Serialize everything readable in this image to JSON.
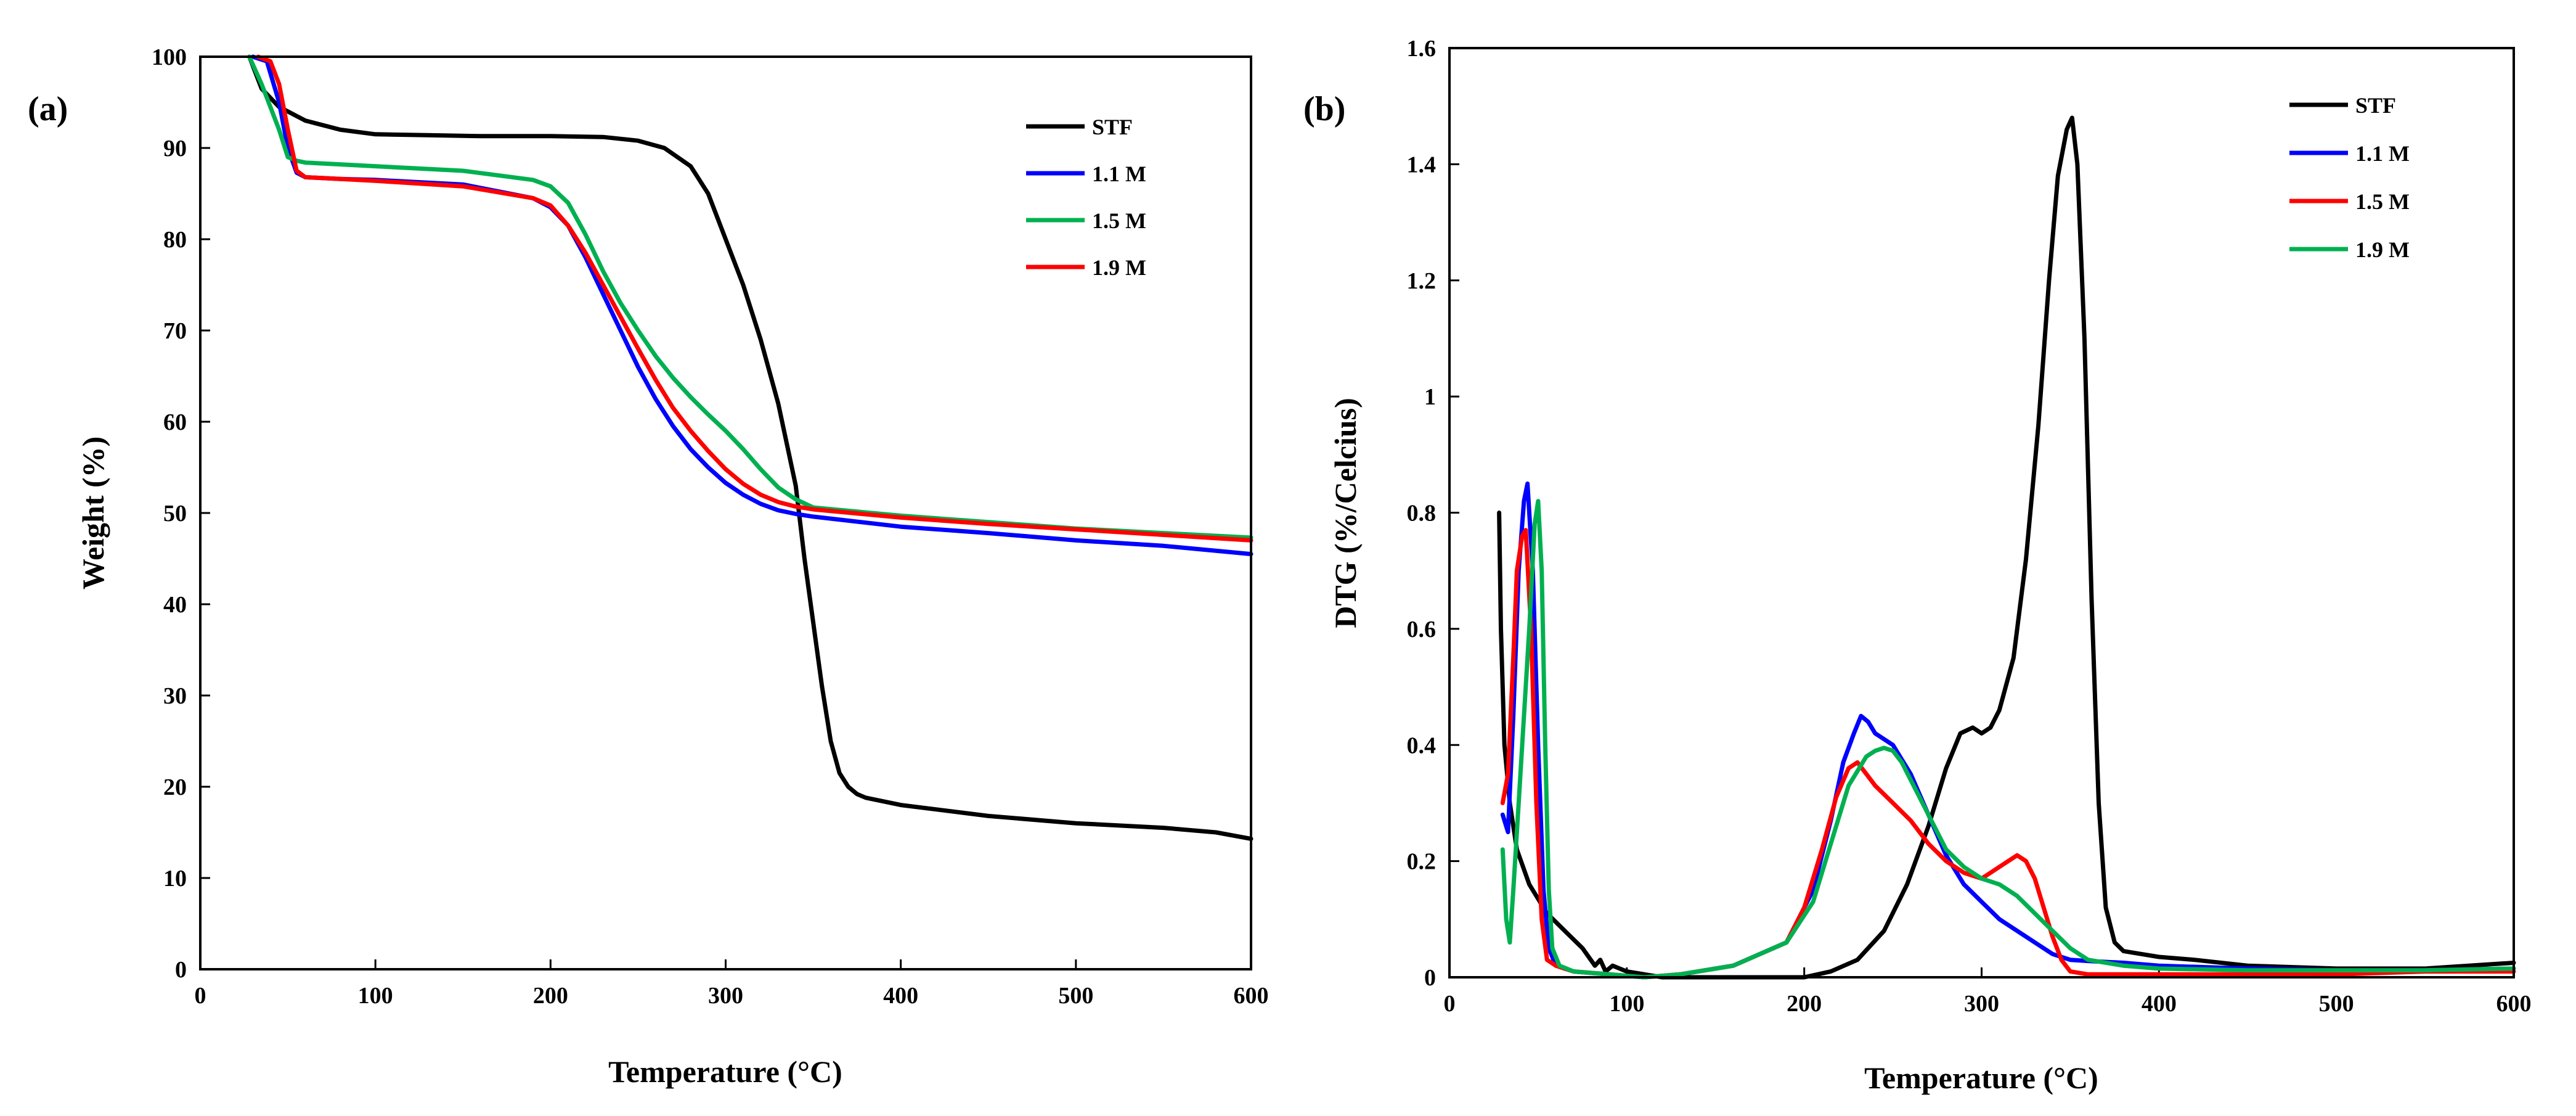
{
  "chart_data": [
    {
      "type": "line",
      "panel_label": "(a)",
      "title": "",
      "xlabel": "Temperature  (°C)",
      "ylabel": "Weight (%)",
      "xlim": [
        0,
        600
      ],
      "ylim": [
        0,
        100
      ],
      "xticks": [
        "0",
        "100",
        "200",
        "300",
        "400",
        "500",
        "600"
      ],
      "yticks": [
        "0",
        "10",
        "20",
        "30",
        "40",
        "50",
        "60",
        "70",
        "80",
        "90",
        "100"
      ],
      "legend_position": "top-right",
      "series": [
        {
          "name": "STF",
          "color": "#000000",
          "x": [
            28,
            35,
            45,
            60,
            80,
            100,
            130,
            160,
            200,
            230,
            250,
            265,
            280,
            290,
            300,
            310,
            320,
            330,
            340,
            345,
            350,
            355,
            360,
            365,
            370,
            375,
            380,
            400,
            450,
            500,
            550,
            580,
            600
          ],
          "y": [
            100,
            96.5,
            94.5,
            93,
            92,
            91.5,
            91.4,
            91.3,
            91.3,
            91.2,
            90.8,
            90,
            88,
            85,
            80,
            75,
            69,
            62,
            53,
            45,
            38,
            31,
            25,
            21.5,
            20,
            19.2,
            18.8,
            18,
            16.8,
            16,
            15.5,
            15,
            14.3
          ]
        },
        {
          "name": "1.1 M",
          "color": "#0000ff",
          "x": [
            30,
            38,
            45,
            50,
            55,
            60,
            80,
            100,
            150,
            190,
            200,
            210,
            220,
            230,
            240,
            250,
            260,
            270,
            280,
            290,
            300,
            310,
            320,
            330,
            340,
            350,
            400,
            450,
            500,
            550,
            600
          ],
          "y": [
            100,
            99.5,
            95,
            90,
            87.3,
            86.8,
            86.6,
            86.5,
            86,
            84.5,
            83.5,
            81.5,
            78,
            74,
            70,
            66,
            62.5,
            59.5,
            57,
            55,
            53.3,
            52,
            51,
            50.3,
            49.9,
            49.6,
            48.5,
            47.8,
            47,
            46.4,
            45.5
          ]
        },
        {
          "name": "1.5 M",
          "color": "#00b050",
          "x": [
            28,
            35,
            45,
            50,
            55,
            60,
            80,
            100,
            150,
            190,
            200,
            210,
            220,
            230,
            240,
            250,
            260,
            270,
            280,
            290,
            300,
            310,
            320,
            330,
            340,
            350,
            400,
            450,
            500,
            550,
            600
          ],
          "y": [
            100,
            97,
            92,
            89,
            88.6,
            88.4,
            88.2,
            88,
            87.5,
            86.5,
            85.8,
            84,
            80.5,
            76.5,
            73,
            70,
            67.2,
            64.8,
            62.7,
            60.8,
            59,
            57,
            54.8,
            52.8,
            51.5,
            50.6,
            49.7,
            49,
            48.3,
            47.8,
            47.3
          ]
        },
        {
          "name": "1.9 M",
          "color": "#ff0000",
          "x": [
            33,
            40,
            45,
            50,
            55,
            60,
            80,
            100,
            150,
            190,
            200,
            210,
            220,
            230,
            240,
            250,
            260,
            270,
            280,
            290,
            300,
            310,
            320,
            330,
            340,
            350,
            400,
            450,
            500,
            550,
            600
          ],
          "y": [
            100,
            99.5,
            97,
            92,
            87.5,
            86.8,
            86.6,
            86.4,
            85.8,
            84.5,
            83.7,
            81.5,
            78.5,
            75,
            71.5,
            68,
            64.6,
            61.5,
            59,
            56.8,
            54.8,
            53.2,
            52,
            51.2,
            50.7,
            50.4,
            49.5,
            48.8,
            48.2,
            47.6,
            47
          ]
        }
      ]
    },
    {
      "type": "line",
      "panel_label": "(b)",
      "title": "",
      "xlabel": "Temperature  (°C)",
      "ylabel": "DTG  (%/Celcius)",
      "xlim": [
        0,
        600
      ],
      "ylim": [
        0,
        1.6
      ],
      "xticks": [
        "0",
        "100",
        "200",
        "300",
        "400",
        "500",
        "600"
      ],
      "yticks": [
        "0",
        "0.2",
        "0.4",
        "0.6",
        "0.8",
        "1",
        "1.2",
        "1.4",
        "1.6"
      ],
      "legend_position": "top-right",
      "series": [
        {
          "name": "STF",
          "color": "#000000",
          "x": [
            28,
            29,
            31,
            34,
            38,
            45,
            55,
            65,
            75,
            82,
            85,
            88,
            92,
            100,
            110,
            120,
            150,
            200,
            215,
            230,
            245,
            258,
            270,
            280,
            288,
            295,
            300,
            305,
            310,
            318,
            325,
            332,
            338,
            343,
            348,
            351,
            354,
            358,
            362,
            366,
            370,
            375,
            380,
            390,
            400,
            420,
            450,
            500,
            550,
            600
          ],
          "y": [
            0.8,
            0.6,
            0.4,
            0.3,
            0.22,
            0.16,
            0.11,
            0.08,
            0.05,
            0.02,
            0.03,
            0.01,
            0.02,
            0.01,
            0.005,
            0.0,
            0.0,
            0.0,
            0.01,
            0.03,
            0.08,
            0.16,
            0.26,
            0.36,
            0.42,
            0.43,
            0.42,
            0.43,
            0.46,
            0.55,
            0.72,
            0.95,
            1.2,
            1.38,
            1.46,
            1.48,
            1.4,
            1.1,
            0.65,
            0.3,
            0.12,
            0.06,
            0.045,
            0.04,
            0.035,
            0.03,
            0.02,
            0.015,
            0.015,
            0.025
          ]
        },
        {
          "name": "1.1 M",
          "color": "#0000ff",
          "x": [
            30,
            33,
            36,
            39,
            42,
            44,
            47,
            50,
            53,
            56,
            60,
            70,
            90,
            110,
            130,
            160,
            190,
            205,
            215,
            222,
            228,
            232,
            236,
            240,
            250,
            260,
            270,
            280,
            290,
            300,
            310,
            320,
            330,
            340,
            350,
            360,
            380,
            400,
            450,
            500,
            550,
            600
          ],
          "y": [
            0.28,
            0.25,
            0.45,
            0.7,
            0.82,
            0.85,
            0.7,
            0.4,
            0.15,
            0.05,
            0.02,
            0.01,
            0.005,
            0.0,
            0.005,
            0.02,
            0.06,
            0.15,
            0.27,
            0.37,
            0.42,
            0.45,
            0.44,
            0.42,
            0.4,
            0.35,
            0.28,
            0.21,
            0.16,
            0.13,
            0.1,
            0.08,
            0.06,
            0.04,
            0.03,
            0.028,
            0.025,
            0.02,
            0.015,
            0.012,
            0.012,
            0.015
          ]
        },
        {
          "name": "1.5 M",
          "color": "#ff0000",
          "x": [
            30,
            33,
            36,
            38,
            41,
            43,
            46,
            49,
            52,
            55,
            60,
            70,
            90,
            110,
            130,
            160,
            190,
            200,
            210,
            218,
            225,
            230,
            235,
            240,
            250,
            260,
            270,
            280,
            290,
            300,
            305,
            310,
            315,
            320,
            325,
            330,
            335,
            340,
            345,
            350,
            360,
            380,
            400,
            450,
            500,
            550,
            600
          ],
          "y": [
            0.3,
            0.35,
            0.55,
            0.7,
            0.76,
            0.77,
            0.6,
            0.3,
            0.1,
            0.03,
            0.02,
            0.01,
            0.005,
            0.0,
            0.005,
            0.02,
            0.06,
            0.12,
            0.22,
            0.31,
            0.36,
            0.37,
            0.35,
            0.33,
            0.3,
            0.27,
            0.23,
            0.2,
            0.18,
            0.17,
            0.18,
            0.19,
            0.2,
            0.21,
            0.2,
            0.17,
            0.12,
            0.07,
            0.03,
            0.01,
            0.005,
            0.005,
            0.005,
            0.005,
            0.005,
            0.01,
            0.01
          ]
        },
        {
          "name": "1.9 M",
          "color": "#00b050",
          "x": [
            30,
            32,
            34,
            36,
            39,
            42,
            45,
            48,
            50,
            52,
            54,
            56,
            58,
            62,
            70,
            90,
            110,
            130,
            160,
            190,
            205,
            215,
            225,
            235,
            240,
            245,
            250,
            255,
            260,
            270,
            280,
            290,
            300,
            310,
            320,
            330,
            340,
            350,
            360,
            380,
            400,
            450,
            500,
            550,
            600
          ],
          "y": [
            0.22,
            0.1,
            0.06,
            0.15,
            0.3,
            0.45,
            0.6,
            0.78,
            0.82,
            0.7,
            0.4,
            0.15,
            0.05,
            0.02,
            0.01,
            0.005,
            0.0,
            0.005,
            0.02,
            0.06,
            0.13,
            0.23,
            0.33,
            0.38,
            0.39,
            0.395,
            0.39,
            0.37,
            0.34,
            0.28,
            0.22,
            0.19,
            0.17,
            0.16,
            0.14,
            0.11,
            0.08,
            0.05,
            0.03,
            0.02,
            0.015,
            0.012,
            0.012,
            0.012,
            0.015
          ]
        }
      ]
    }
  ]
}
